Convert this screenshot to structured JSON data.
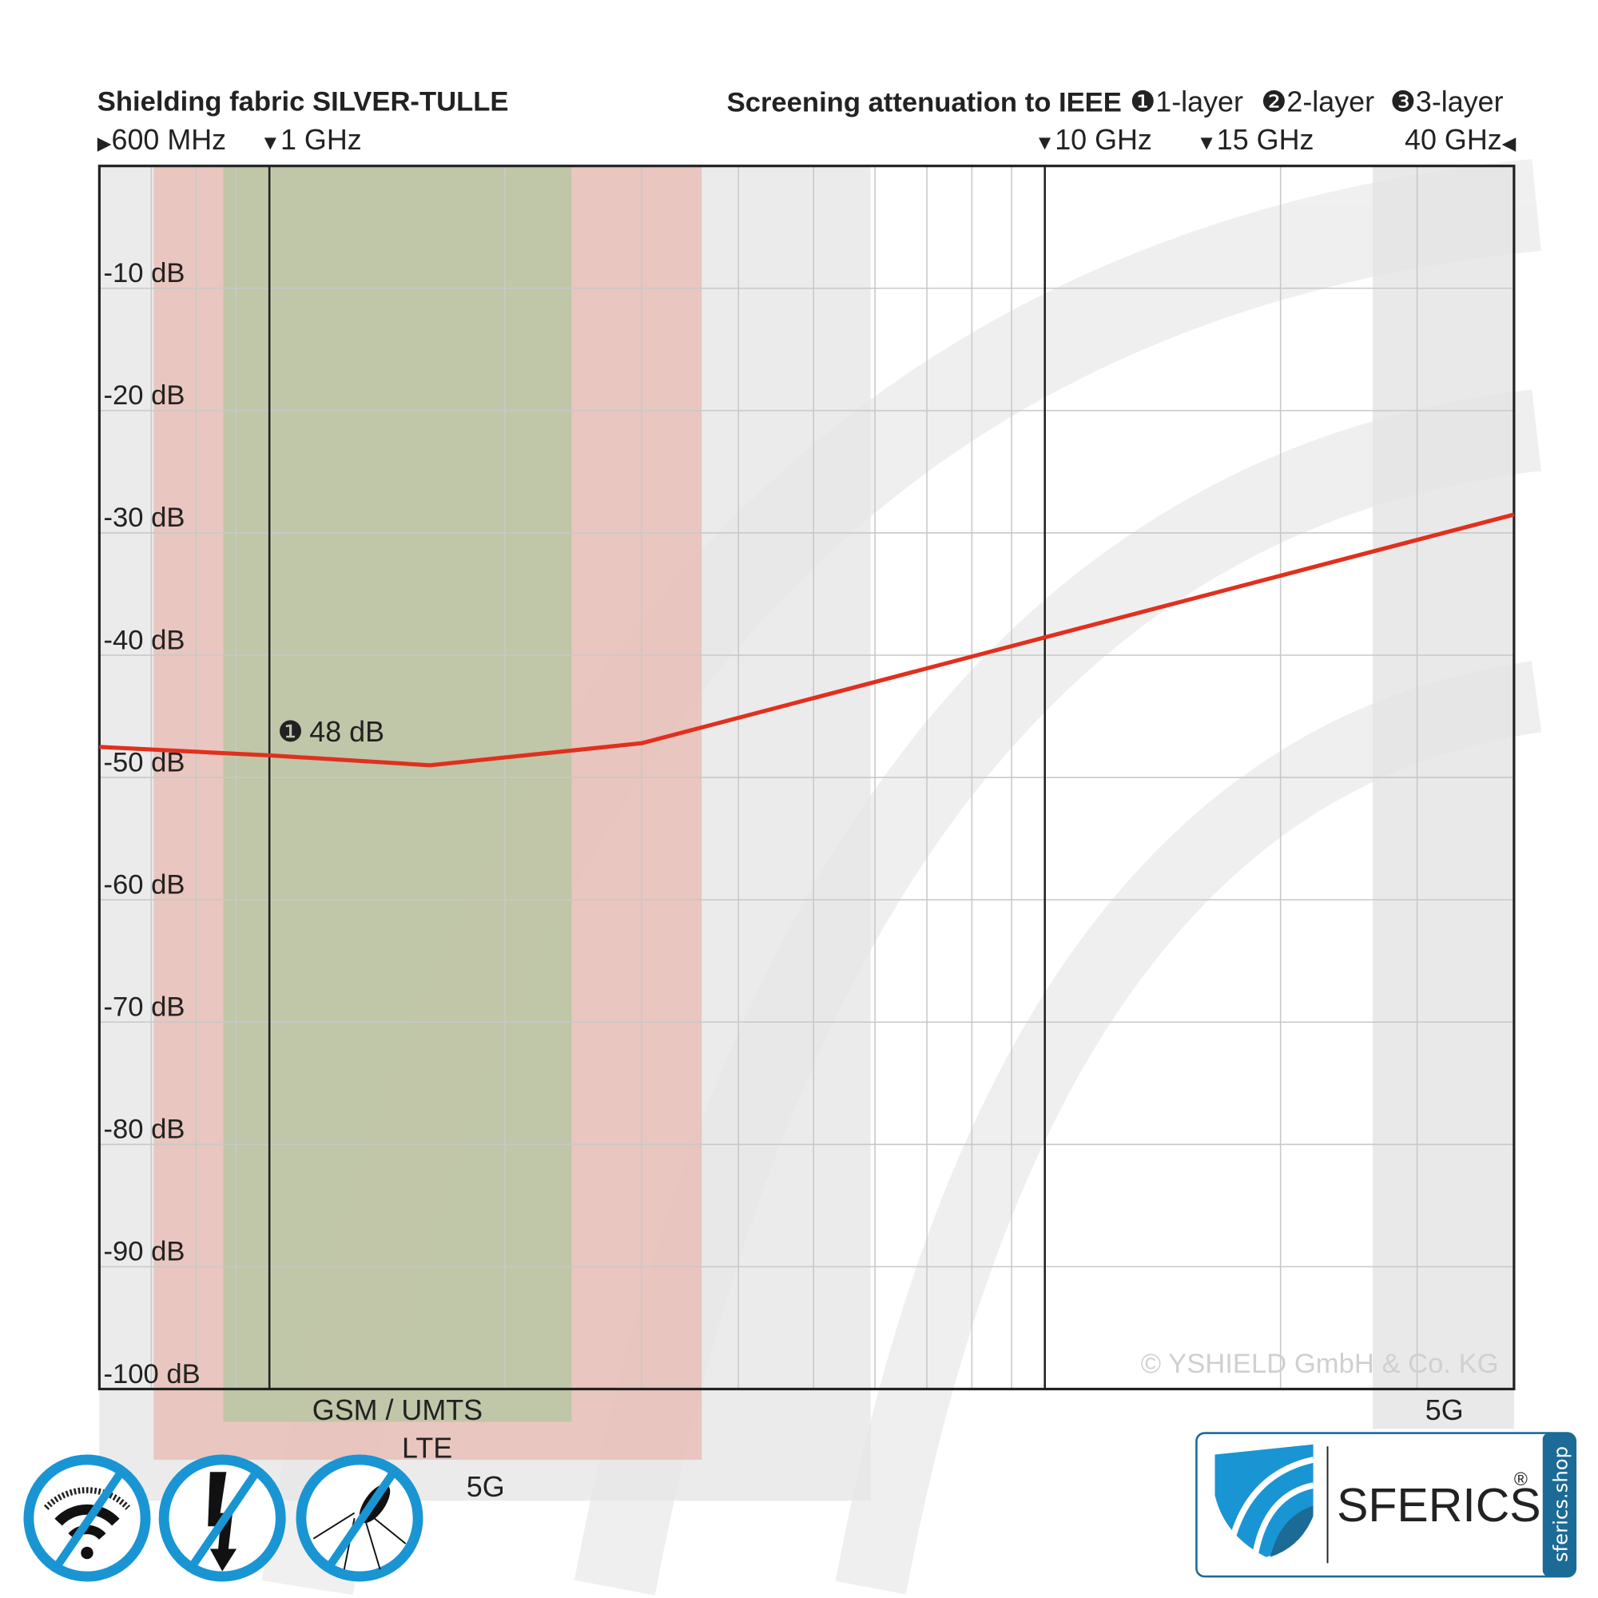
{
  "chart_data": {
    "type": "line",
    "title": "Shielding fabric SILVER-TULLE",
    "subtitle": "Screening attenuation to IEEE",
    "legend": [
      {
        "marker": "❶",
        "label": "1-layer"
      },
      {
        "marker": "❷",
        "label": "2-layer"
      },
      {
        "marker": "❸",
        "label": "3-layer"
      }
    ],
    "freq_markers": [
      {
        "label": "600 MHz",
        "arrow": "▶",
        "side": "left"
      },
      {
        "label": "1 GHz",
        "arrow": "▼",
        "side": "left"
      },
      {
        "label": "10 GHz",
        "arrow": "▼",
        "side": "left"
      },
      {
        "label": "15 GHz",
        "arrow": "▼",
        "side": "left"
      },
      {
        "label": "40 GHz",
        "arrow": "◀",
        "side": "right"
      }
    ],
    "x_scale": "log",
    "x_unit": "GHz",
    "xlim": [
      0.6,
      40
    ],
    "ylim": [
      0,
      -100
    ],
    "y_ticks": [
      -10,
      -20,
      -30,
      -40,
      -50,
      -60,
      -70,
      -80,
      -90,
      -100
    ],
    "y_tick_labels": [
      "-10 dB",
      "-20 dB",
      "-30 dB",
      "-40 dB",
      "-50 dB",
      "-60 dB",
      "-70 dB",
      "-80 dB",
      "-90 dB",
      "-100 dB"
    ],
    "grid": true,
    "series": [
      {
        "name": "1-layer",
        "color": "#e0301e",
        "x": [
          0.6,
          1,
          1.6,
          3,
          10,
          40
        ],
        "y": [
          -47.5,
          -48.2,
          -49,
          -47.2,
          -38.5,
          -28.5
        ]
      }
    ],
    "annotation": {
      "marker": "❶",
      "text": "48 dB"
    },
    "bands": [
      {
        "label": "GSM / UMTS",
        "color": "#b8c4a0"
      },
      {
        "label": "LTE",
        "color": "#e6b4ac"
      },
      {
        "label": "5G",
        "color": "#e4e4e4"
      },
      {
        "label": "5G",
        "color": "#e4e4e4"
      }
    ],
    "copyright": "© YSHIELD GmbH & Co. KG"
  },
  "badges": [
    "no-wifi-icon",
    "no-lightning-icon",
    "no-mosquito-icon"
  ],
  "logo": {
    "text": "SFERICS",
    "registered": "®",
    "side_text": "sferics.shop",
    "color": "#1a95d3",
    "dark": "#1b6b96"
  }
}
